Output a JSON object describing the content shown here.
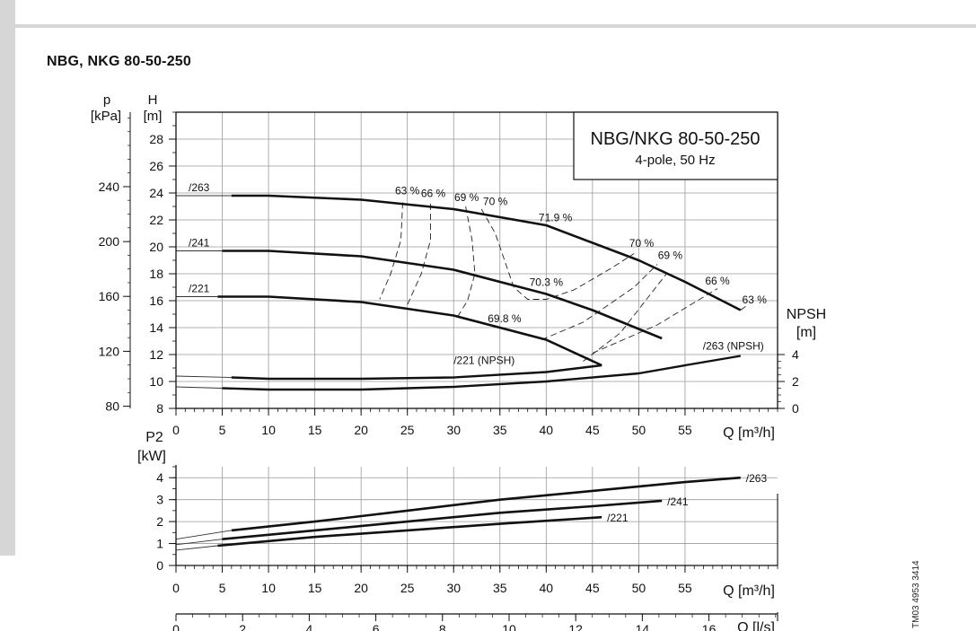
{
  "page": {
    "title": "NBG, NKG 80-50-250",
    "doc_code": "TM03 4953 3414"
  },
  "chart_data": [
    {
      "type": "line",
      "title": "NBG/NKG 80-50-250",
      "subtitle": "4-pole, 50 Hz",
      "xlabel": "Q [m³/h]",
      "xlim": [
        0,
        65
      ],
      "x_ticks": [
        0,
        5,
        10,
        15,
        20,
        25,
        30,
        35,
        40,
        45,
        50,
        55
      ],
      "ylabel": "H [m]",
      "ylabel_top": "H",
      "ylabel_unit": "[m]",
      "ylim": [
        8,
        30
      ],
      "y_ticks": [
        8,
        10,
        12,
        14,
        16,
        18,
        20,
        22,
        24,
        26,
        28
      ],
      "pressure_axis": {
        "label_top": "p",
        "label_unit": "[kPa]",
        "ticks": [
          80,
          120,
          160,
          200,
          240
        ],
        "tick_heights_m": [
          8.16,
          12.24,
          16.32,
          20.39,
          24.47
        ]
      },
      "npsh_axis": {
        "label_top": "NPSH",
        "label_unit": "[m]",
        "ticks": [
          0,
          2,
          4
        ],
        "range_m": [
          0,
          22
        ]
      },
      "grid": true,
      "series": [
        {
          "name": "/263",
          "x": [
            0,
            6,
            10,
            20,
            30,
            40,
            50,
            55,
            61
          ],
          "y": [
            23.8,
            23.8,
            23.8,
            23.5,
            22.8,
            21.6,
            19.0,
            17.4,
            15.3
          ]
        },
        {
          "name": "/241",
          "x": [
            0,
            5,
            10,
            20,
            30,
            40,
            45,
            52.5
          ],
          "y": [
            19.7,
            19.7,
            19.7,
            19.3,
            18.3,
            16.5,
            15.3,
            13.2
          ]
        },
        {
          "name": "/221",
          "x": [
            0,
            4.5,
            10,
            20,
            30,
            40,
            46
          ],
          "y": [
            16.3,
            16.3,
            16.3,
            15.9,
            14.9,
            13.1,
            11.2
          ]
        }
      ],
      "npsh_series": [
        {
          "name": "/263 (NPSH)",
          "x": [
            0,
            5,
            10,
            20,
            30,
            40,
            50,
            55,
            61
          ],
          "y": [
            1.6,
            1.5,
            1.4,
            1.4,
            1.6,
            2.0,
            2.6,
            3.2,
            3.9
          ]
        },
        {
          "name": "/221 (NPSH)",
          "x": [
            0,
            6,
            10,
            20,
            30,
            40,
            46
          ],
          "y": [
            2.4,
            2.3,
            2.2,
            2.2,
            2.3,
            2.7,
            3.2
          ]
        }
      ],
      "efficiency_labels": [
        {
          "label": "63 %",
          "x": 25,
          "y": 23.9
        },
        {
          "label": "66 %",
          "x": 27.8,
          "y": 23.7
        },
        {
          "label": "69 %",
          "x": 31.4,
          "y": 23.4
        },
        {
          "label": "70 %",
          "x": 34.5,
          "y": 23.1
        },
        {
          "label": "71.9 %",
          "x": 41,
          "y": 21.9
        },
        {
          "label": "70 %",
          "x": 50.3,
          "y": 20.0
        },
        {
          "label": "69 %",
          "x": 53.4,
          "y": 19.1
        },
        {
          "label": "66 %",
          "x": 58.5,
          "y": 17.2
        },
        {
          "label": "63 %",
          "x": 62.5,
          "y": 15.8
        },
        {
          "label": "70.3 %",
          "x": 40,
          "y": 17.1
        },
        {
          "label": "69.8 %",
          "x": 35.5,
          "y": 14.4
        }
      ],
      "efficiency_contours": [
        {
          "name": "63 %",
          "x": [
            24.5,
            24.3,
            23.2,
            22
          ],
          "y": [
            23.3,
            20.5,
            18.0,
            16.1
          ]
        },
        {
          "name": "66 %",
          "x": [
            27.5,
            27.5,
            26.5,
            25
          ],
          "y": [
            23.2,
            20.5,
            18.0,
            15.7
          ]
        },
        {
          "name": "69 %",
          "x": [
            31.3,
            32.0,
            32.3,
            31.5,
            30.5
          ],
          "y": [
            23.0,
            20.5,
            18.0,
            16.0,
            14.9
          ]
        },
        {
          "name": "70 %",
          "x": [
            33,
            34.5,
            35.5,
            36.5,
            38,
            40,
            43,
            47,
            49.5
          ],
          "y": [
            22.8,
            21.0,
            19.0,
            17.0,
            16.1,
            16.1,
            16.8,
            18.4,
            19.5
          ]
        },
        {
          "name": "70 % lower",
          "x": [
            39.5,
            44,
            49.5,
            52
          ],
          "y": [
            13.1,
            14.4,
            17.0,
            18.7
          ]
        },
        {
          "name": "69 %",
          "x": [
            44,
            48,
            53
          ],
          "y": [
            11.5,
            13.6,
            18.0
          ]
        },
        {
          "name": "66 %",
          "x": [
            45,
            52,
            58.5
          ],
          "y": [
            12.1,
            14.2,
            16.9
          ]
        },
        {
          "name": "63 %",
          "x": [
            61,
            61.6
          ],
          "y": [
            15.3,
            15.6
          ]
        }
      ]
    },
    {
      "type": "line",
      "ylabel": "P2 [kW]",
      "ylabel_top": "P2",
      "ylabel_unit": "[kW]",
      "ylim": [
        0,
        4.5
      ],
      "y_ticks": [
        0,
        1,
        2,
        3,
        4
      ],
      "xlabel": "Q [m³/h]",
      "xlim": [
        0,
        65
      ],
      "x_ticks": [
        0,
        5,
        10,
        15,
        20,
        25,
        30,
        35,
        40,
        45,
        50,
        55
      ],
      "grid": true,
      "series": [
        {
          "name": "/263",
          "x": [
            0,
            6,
            15,
            25,
            35,
            45,
            55,
            61
          ],
          "y": [
            1.2,
            1.6,
            2.0,
            2.5,
            3.0,
            3.4,
            3.8,
            4.0
          ]
        },
        {
          "name": "/241",
          "x": [
            0,
            5,
            15,
            25,
            35,
            45,
            52.5
          ],
          "y": [
            0.95,
            1.2,
            1.6,
            2.0,
            2.4,
            2.7,
            2.95
          ]
        },
        {
          "name": "/221",
          "x": [
            0,
            4.5,
            15,
            25,
            35,
            46
          ],
          "y": [
            0.7,
            0.9,
            1.3,
            1.6,
            1.9,
            2.2
          ]
        }
      ]
    },
    {
      "type": "line",
      "xlabel": "Q [l/s]",
      "x_ticks": [
        0,
        2,
        4,
        6,
        8,
        10,
        12,
        14,
        16
      ],
      "xlim": [
        0,
        18.06
      ]
    }
  ]
}
